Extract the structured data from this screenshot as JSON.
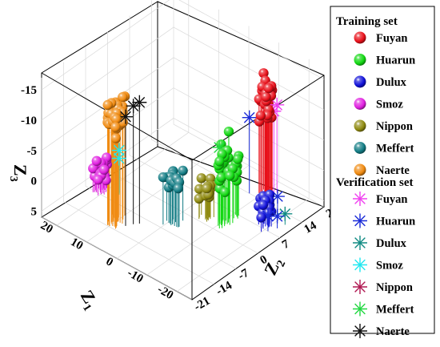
{
  "chart_data": {
    "type": "scatter",
    "projection": "3d",
    "title": "",
    "axes": {
      "z1": {
        "label": "Z",
        "sub": "1",
        "ticks": [
          20,
          10,
          0,
          -10,
          -20
        ],
        "range": [
          -25,
          25
        ]
      },
      "z2": {
        "label": "Z",
        "sub": "2",
        "ticks": [
          21,
          14,
          7,
          0,
          -7,
          -14,
          -21
        ],
        "range": [
          -21,
          21
        ]
      },
      "z3": {
        "label": "Z",
        "sub": "3",
        "ticks": [
          -15,
          -10,
          -5,
          0,
          5
        ],
        "range": [
          -17,
          6
        ],
        "reversed": true
      }
    },
    "grid": true,
    "drop_lines": true,
    "legend": {
      "position": "right",
      "training_title": "Training set",
      "verification_title": "Verification set"
    },
    "series": [
      {
        "name": "Fuyan",
        "group": "training",
        "marker": "sphere",
        "color": "#e8101a",
        "center": [
          -11,
          16,
          -10
        ],
        "spread": [
          2.2,
          2,
          2.5
        ],
        "count": 30
      },
      {
        "name": "Huarun",
        "group": "training",
        "marker": "sphere",
        "color": "#12d812",
        "center": [
          -11,
          4,
          -3
        ],
        "spread": [
          2,
          2.5,
          3
        ],
        "count": 32
      },
      {
        "name": "Dulux",
        "group": "training",
        "marker": "sphere",
        "color": "#1010d8",
        "center": [
          -19,
          8,
          3
        ],
        "spread": [
          1.5,
          1.6,
          1.2
        ],
        "count": 20
      },
      {
        "name": "Smoz",
        "group": "training",
        "marker": "sphere",
        "color": "#e020e0",
        "center": [
          21,
          -6,
          2.5
        ],
        "spread": [
          1.6,
          1.5,
          1.2
        ],
        "count": 24
      },
      {
        "name": "Nippon",
        "group": "training",
        "marker": "sphere",
        "color": "#8f8a10",
        "center": [
          -6,
          1.5,
          1
        ],
        "spread": [
          1.2,
          1.3,
          1.4
        ],
        "count": 16
      },
      {
        "name": "Meffert",
        "group": "training",
        "marker": "sphere",
        "color": "#127c84",
        "center": [
          -1,
          -4.5,
          -1
        ],
        "spread": [
          1.5,
          1.5,
          1.4
        ],
        "count": 16
      },
      {
        "name": "Naerte",
        "group": "training",
        "marker": "sphere",
        "color": "#f08a10",
        "center": [
          10,
          -11.5,
          -11.5
        ],
        "spread": [
          2,
          2.5,
          2.5
        ],
        "count": 34
      },
      {
        "name": "Fuyan",
        "group": "verification",
        "marker": "asterisk",
        "color": "#f040f0",
        "points": [
          [
            -12.5,
            18,
            -8.5
          ],
          [
            -12,
            17.5,
            -7.5
          ]
        ]
      },
      {
        "name": "Huarun",
        "group": "verification",
        "marker": "asterisk",
        "color": "#1a2bd8",
        "points": [
          [
            -7.5,
            14,
            -6.5
          ],
          [
            -20,
            11,
            2
          ],
          [
            -21,
            7,
            3.5
          ],
          [
            -22,
            9,
            4
          ]
        ]
      },
      {
        "name": "Dulux",
        "group": "verification",
        "marker": "asterisk",
        "color": "#128c84",
        "points": [
          [
            -22.5,
            11,
            4.2
          ]
        ]
      },
      {
        "name": "Smoz",
        "group": "verification",
        "marker": "asterisk",
        "color": "#20e8f0",
        "points": [
          [
            17,
            -4,
            -1
          ],
          [
            16.5,
            -4.5,
            0
          ]
        ]
      },
      {
        "name": "Nippon",
        "group": "verification",
        "marker": "asterisk",
        "color": "#b01852",
        "points": []
      },
      {
        "name": "Meffert",
        "group": "verification",
        "marker": "asterisk",
        "color": "#20d840",
        "points": [
          [
            -9,
            3,
            -6
          ]
        ]
      },
      {
        "name": "Naerte",
        "group": "verification",
        "marker": "asterisk",
        "color": "#101010",
        "points": [
          [
            7,
            -11.5,
            -12
          ],
          [
            5,
            -9,
            -14
          ],
          [
            6,
            -10,
            -13.5
          ]
        ]
      }
    ]
  }
}
